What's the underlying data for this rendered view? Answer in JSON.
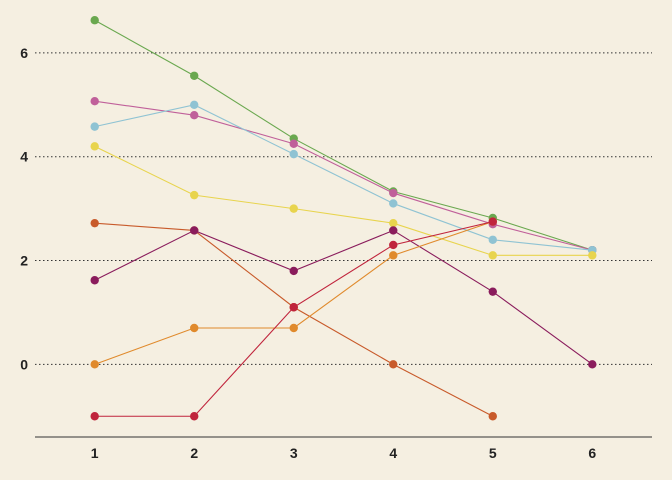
{
  "chart_data": {
    "type": "line",
    "title": "",
    "xlabel": "",
    "ylabel": "",
    "x": [
      1,
      2,
      3,
      4,
      5,
      6
    ],
    "x_ticks": [
      "1",
      "2",
      "3",
      "4",
      "5",
      "6"
    ],
    "y_ticks": [
      "0",
      "2",
      "4",
      "6"
    ],
    "xlim": [
      0.4,
      6.6
    ],
    "ylim": [
      -1.4,
      6.75
    ],
    "grid": "horizontal dotted",
    "legend": "none",
    "background": "#f5efe1",
    "series": [
      {
        "color": "#6aa84f",
        "values": [
          6.63,
          5.56,
          4.35,
          3.33,
          2.82,
          2.2
        ]
      },
      {
        "color": "#c0609a",
        "values": [
          5.07,
          4.8,
          4.25,
          3.3,
          2.7,
          2.2
        ]
      },
      {
        "color": "#8fc3d3",
        "values": [
          4.58,
          5.0,
          4.05,
          3.1,
          2.4,
          2.2
        ]
      },
      {
        "color": "#e8d44d",
        "values": [
          4.2,
          3.26,
          3.0,
          2.72,
          2.1,
          2.1
        ]
      },
      {
        "color": "#c85a2a",
        "values": [
          2.72,
          2.58,
          1.1,
          0.0,
          -1.0,
          null
        ]
      },
      {
        "color": "#8a1c5c",
        "values": [
          1.62,
          2.58,
          1.8,
          2.58,
          1.4,
          0.0
        ]
      },
      {
        "color": "#e08a2c",
        "values": [
          0.0,
          0.7,
          0.7,
          2.1,
          2.75,
          null
        ]
      },
      {
        "color": "#c0243c",
        "values": [
          -1.0,
          -1.0,
          1.1,
          2.3,
          2.75,
          null
        ]
      }
    ]
  }
}
